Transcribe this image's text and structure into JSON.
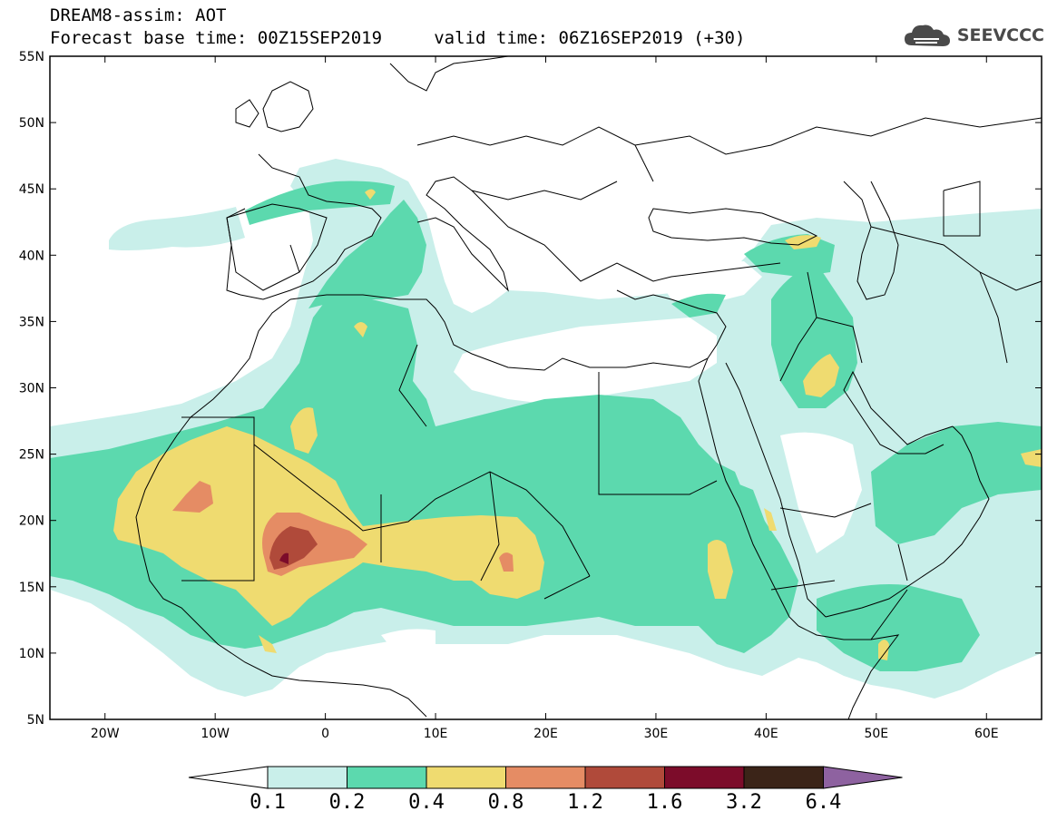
{
  "header": {
    "title_line1": "DREAM8-assim: AOT",
    "title_line2": "Forecast base time: 00Z15SEP2019     valid time: 06Z16SEP2019 (+30)",
    "logo_text": "SEEVCCC"
  },
  "map": {
    "variable": "AOT",
    "lon_range": [
      -25,
      65
    ],
    "lat_range": [
      5,
      55
    ],
    "lat_ticks": [
      {
        "value": 55,
        "label": "55N"
      },
      {
        "value": 50,
        "label": "50N"
      },
      {
        "value": 45,
        "label": "45N"
      },
      {
        "value": 40,
        "label": "40N"
      },
      {
        "value": 35,
        "label": "35N"
      },
      {
        "value": 30,
        "label": "30N"
      },
      {
        "value": 25,
        "label": "25N"
      },
      {
        "value": 20,
        "label": "20N"
      },
      {
        "value": 15,
        "label": "15N"
      },
      {
        "value": 10,
        "label": "10N"
      },
      {
        "value": 5,
        "label": "5N"
      }
    ],
    "lon_ticks": [
      {
        "value": -20,
        "label": "20W"
      },
      {
        "value": -10,
        "label": "10W"
      },
      {
        "value": 0,
        "label": "0"
      },
      {
        "value": 10,
        "label": "10E"
      },
      {
        "value": 20,
        "label": "20E"
      },
      {
        "value": 30,
        "label": "30E"
      },
      {
        "value": 40,
        "label": "40E"
      },
      {
        "value": 50,
        "label": "50E"
      },
      {
        "value": 60,
        "label": "60E"
      }
    ],
    "colors": {
      "c01": "#c9efea",
      "c02": "#5cd9ae",
      "c04": "#efdb70",
      "c08": "#e58c64",
      "c12": "#b04a3a",
      "c16": "#7c0c2a",
      "c32": "#3b2418",
      "c64": "#8e62a0",
      "borders": "#000000"
    }
  },
  "colorbar": {
    "labels": [
      "0.1",
      "0.2",
      "0.4",
      "0.8",
      "1.2",
      "1.6",
      "3.2",
      "6.4"
    ],
    "colors": [
      "#c9efea",
      "#5cd9ae",
      "#efdb70",
      "#e58c64",
      "#b04a3a",
      "#7c0c2a",
      "#3b2418"
    ],
    "under_color": "#ffffff",
    "over_color": "#8e62a0"
  }
}
